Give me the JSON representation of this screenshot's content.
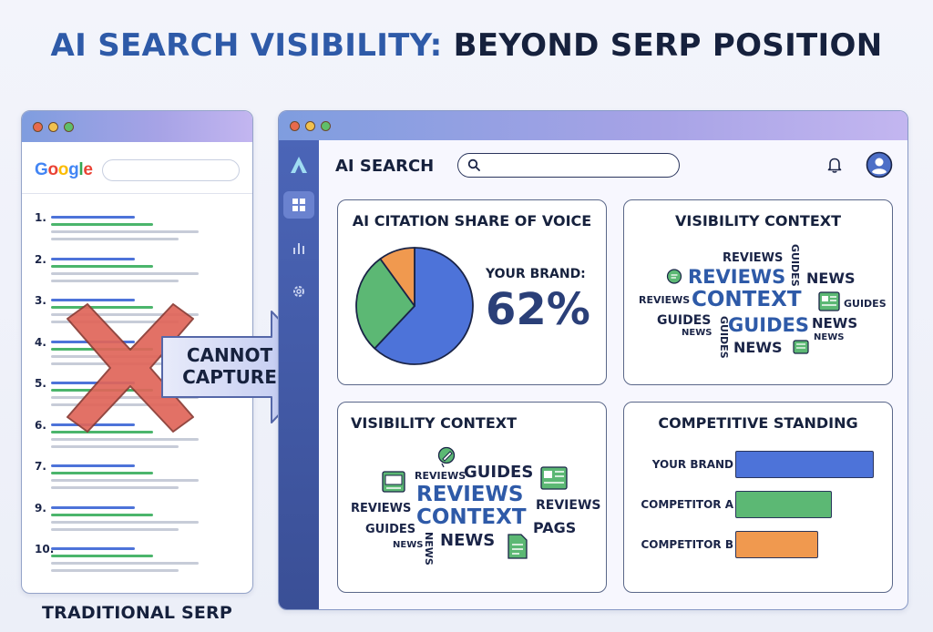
{
  "title": {
    "part1": "AI SEARCH VISIBILITY:",
    "part2": "BEYOND SERP POSITION"
  },
  "serp": {
    "logo": "Google",
    "results": [
      "1.",
      "2.",
      "3.",
      "4.",
      "5.",
      "6.",
      "7.",
      "9.",
      "10."
    ],
    "caption": "TRADITIONAL SERP"
  },
  "arrow": {
    "line1": "CANNOT",
    "line2": "CAPTURE"
  },
  "ai_window": {
    "title": "AI SEARCH",
    "search_placeholder": "",
    "sidebar_icons": [
      "logo-a-icon",
      "dashboard-icon",
      "bar-chart-icon",
      "settings-gear-icon"
    ],
    "header_icons": [
      "bell-icon",
      "user-avatar-icon"
    ],
    "citation_card": {
      "title": "AI CITATION SHARE OF VOICE",
      "brand_label": "YOUR BRAND:",
      "brand_value": "62%"
    },
    "context_card_top": {
      "title": "VISIBILITY CONTEXT",
      "words": [
        "REVIEWS",
        "GUIDES",
        "REVIEWS",
        "NEWS",
        "REVIEWS",
        "CONTEXT",
        "GUIDES",
        "GUIDES",
        "GUIDES",
        "GUIDES",
        "NEWS",
        "NEWS",
        "NEWS",
        "NEWS"
      ]
    },
    "context_card_bottom": {
      "title": "VISIBILITY CONTEXT",
      "words": [
        "REVIEWS",
        "GUIDES",
        "REVIEWS",
        "REVIEWS",
        "REVIEWS",
        "CONTEXT",
        "GUIDES",
        "PAGS",
        "NEWS",
        "NEWS",
        "NEWS"
      ]
    },
    "competitive_card": {
      "title": "COMPETITIVE STANDING"
    }
  },
  "colors": {
    "blue": "#4d73d9",
    "green": "#4bb56c",
    "orange": "#f0994f",
    "navy": "#2a3f78"
  },
  "chart_data": [
    {
      "type": "pie",
      "title": "AI CITATION SHARE OF VOICE",
      "categories": [
        "YOUR BRAND",
        "",
        ""
      ],
      "values": [
        62,
        28,
        10
      ],
      "colors": [
        "#4d73d9",
        "#5cb874",
        "#f0994f"
      ]
    },
    {
      "type": "bar",
      "title": "COMPETITIVE STANDING",
      "orientation": "horizontal",
      "categories": [
        "YOUR BRAND",
        "COMPETITOR A",
        "COMPETITOR B"
      ],
      "values": [
        100,
        70,
        60
      ],
      "colors": [
        "#4d73d9",
        "#5cb874",
        "#f0994f"
      ]
    }
  ]
}
